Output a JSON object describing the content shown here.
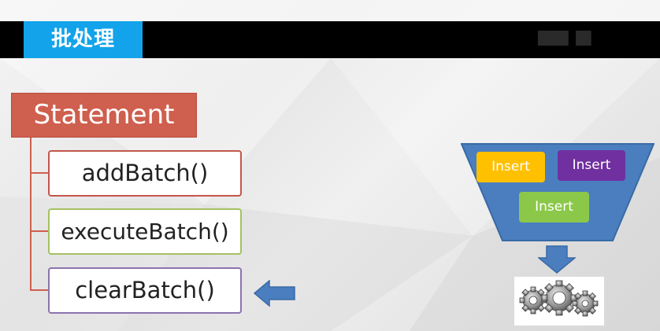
{
  "header": {
    "title": "批处理",
    "watermark": "████ ██"
  },
  "diagram": {
    "root_label": "Statement",
    "methods": [
      {
        "label": "addBatch()",
        "border_color": "#c4564a"
      },
      {
        "label": "executeBatch()",
        "border_color": "#a5c160"
      },
      {
        "label": "clearBatch()",
        "border_color": "#8c73ad"
      }
    ],
    "pointer_arrow_target": "clearBatch()"
  },
  "funnel": {
    "fill_color": "#4a7ebf",
    "items": [
      {
        "label": "Insert",
        "color": "#ffc000"
      },
      {
        "label": "Insert",
        "color": "#7030a0"
      },
      {
        "label": "Insert",
        "color": "#8bc84a"
      }
    ],
    "output_icon": "gears-icon"
  },
  "colors": {
    "title_bar": "#000000",
    "title_tab": "#12a3ea",
    "statement": "#cf5f4e",
    "arrow": "#4a7ebf"
  }
}
